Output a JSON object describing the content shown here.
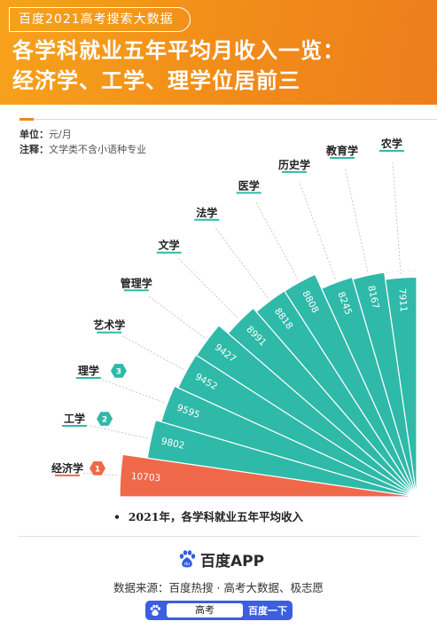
{
  "header": {
    "tag": "百度2021高考搜索大数据",
    "title_line1": "各学科就业五年平均月收入一览：",
    "title_line2": "经济学、工学、理学位居前三"
  },
  "meta": {
    "unit_label": "单位：",
    "unit_value": "元/月",
    "note_label": "注释：",
    "note_value": "文学类不含小语种专业"
  },
  "chart_data": {
    "type": "bar",
    "layout": "radial-fan",
    "categories": [
      "经济学",
      "工学",
      "理学",
      "艺术学",
      "管理学",
      "文学",
      "法学",
      "医学",
      "历史学",
      "教育学",
      "农学"
    ],
    "values": [
      10703,
      9802,
      9595,
      9452,
      9427,
      8991,
      8818,
      8808,
      8245,
      8167,
      7911
    ],
    "rank_badges": [
      "1",
      "2",
      "3"
    ],
    "colors": {
      "top": "#f0684a",
      "others": "#2fb9a8"
    }
  },
  "caption": "2021年，各学科就业五年平均收入",
  "footer": {
    "brand": "百度APP",
    "source": "数据来源：百度热搜 · 高考大数据、极志愿",
    "search_query": "高考",
    "search_button": "百度一下"
  }
}
